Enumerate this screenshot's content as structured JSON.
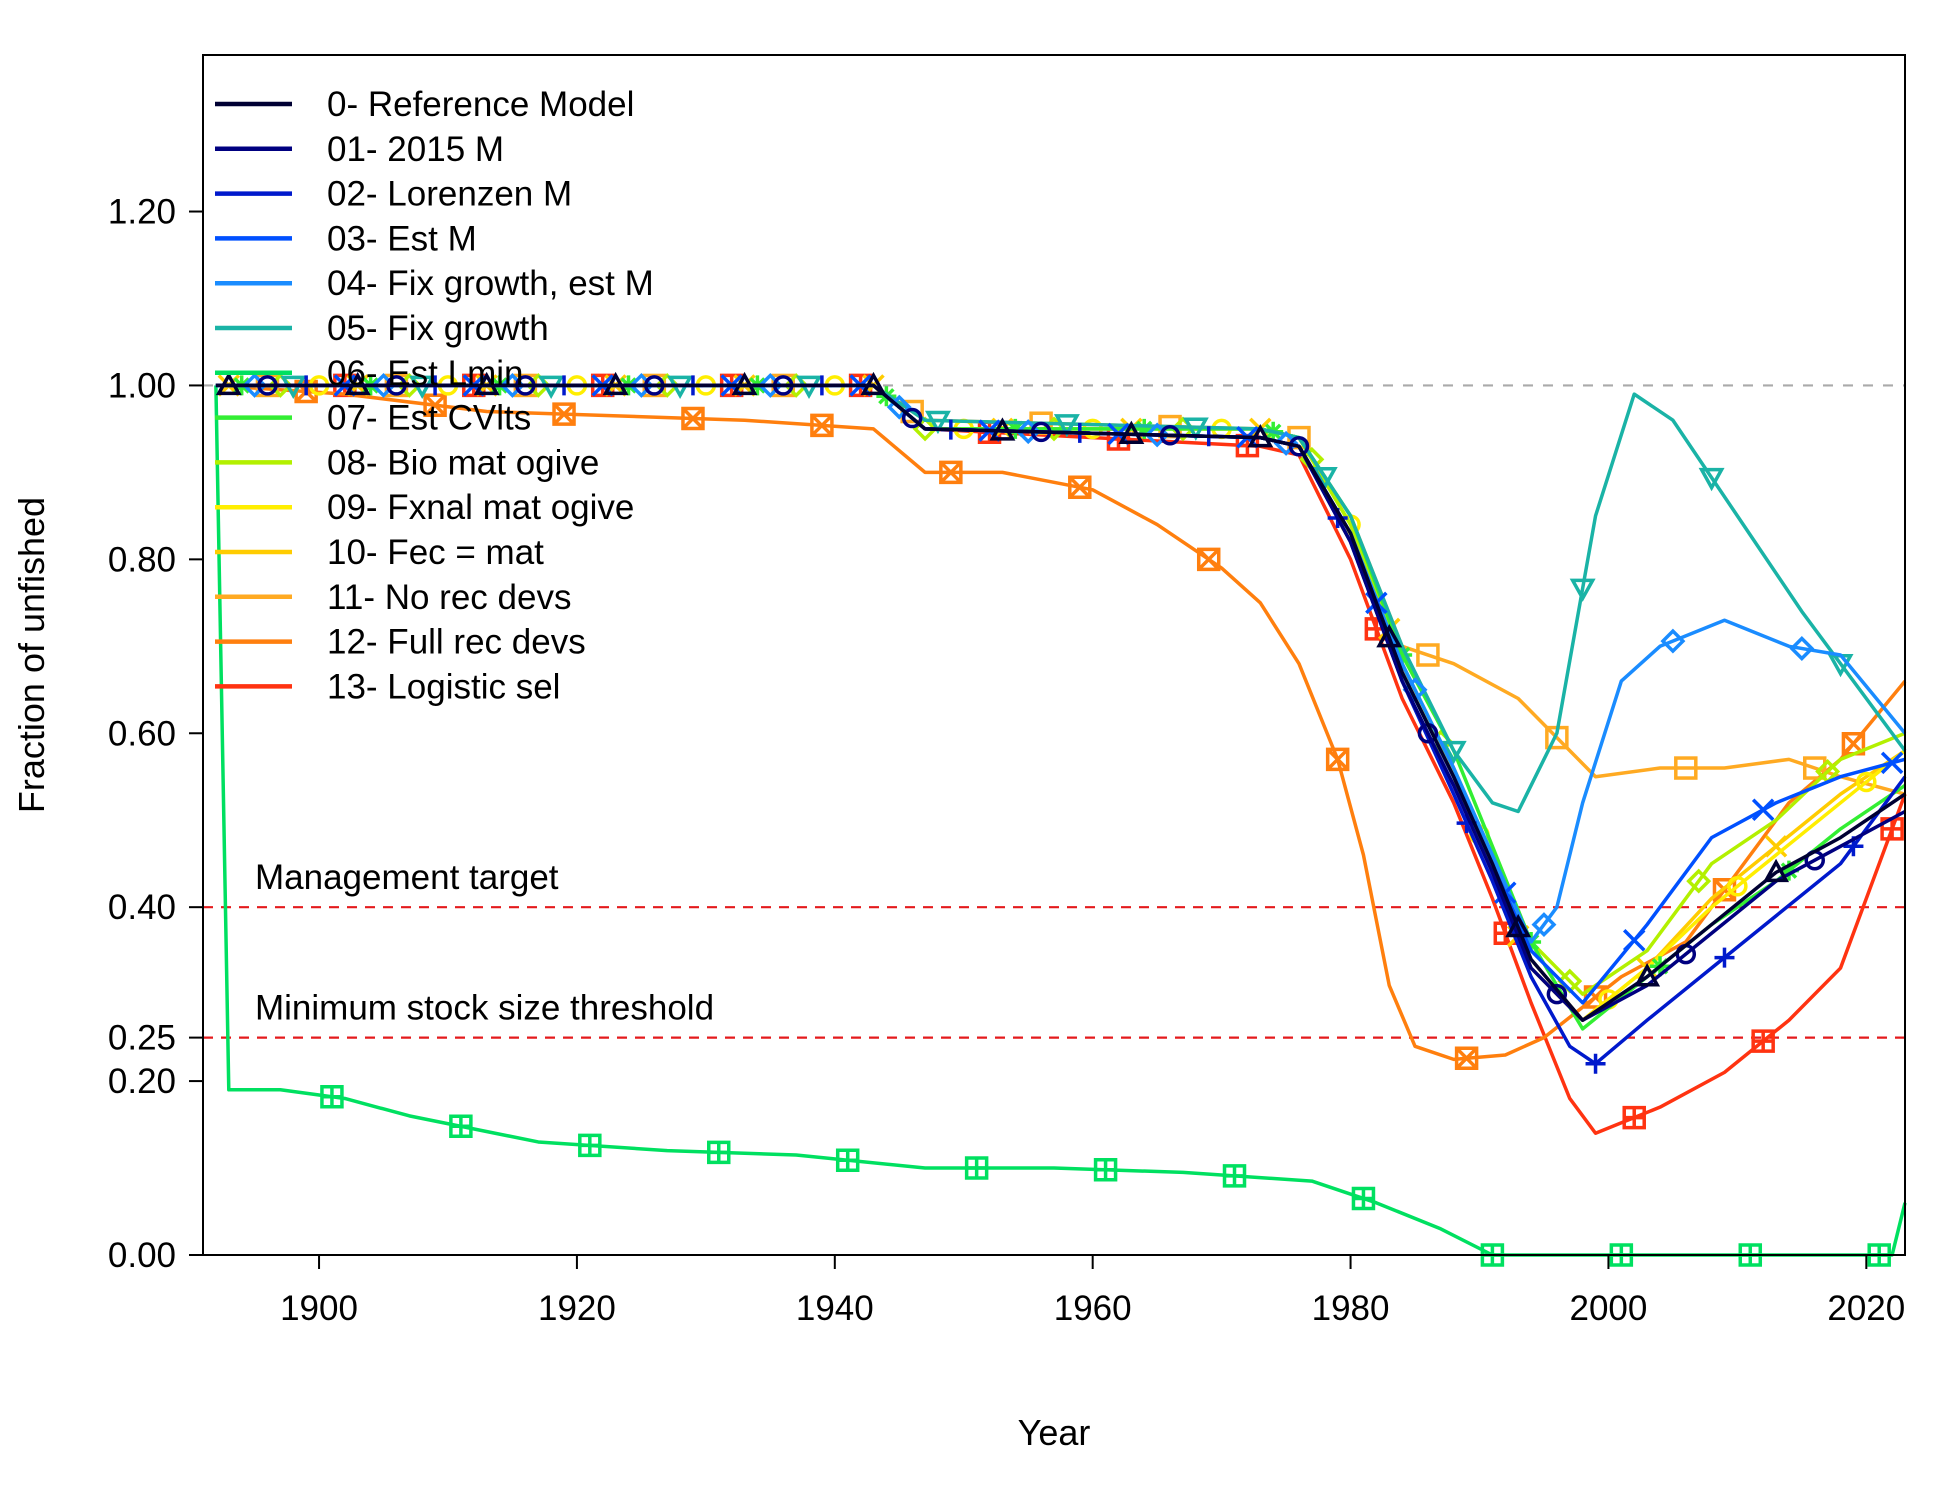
{
  "chart_data": {
    "type": "line",
    "title": "",
    "xlabel": "Year",
    "ylabel": "Fraction of unfished",
    "xlim": [
      1891,
      2023
    ],
    "ylim": [
      0,
      1.38
    ],
    "xticks": [
      1900,
      1920,
      1940,
      1960,
      1980,
      2000,
      2020
    ],
    "yticks": [
      0,
      0.2,
      0.25,
      0.4,
      0.6,
      0.8,
      1.0,
      1.2
    ],
    "ytick_labels": [
      "0.00",
      "0.20",
      "0.25",
      "0.40",
      "0.60",
      "0.80",
      "1.00",
      "1.20"
    ],
    "grid": false,
    "legend_position": "top-left",
    "reference_lines": [
      {
        "value": 1.0,
        "label": "",
        "color": "#aaaaaa"
      },
      {
        "value": 0.4,
        "label": "Management target",
        "color": "#e41a1c"
      },
      {
        "value": 0.25,
        "label": "Minimum stock size threshold",
        "color": "#e41a1c"
      }
    ],
    "series": [
      {
        "name": "0- Reference Model",
        "color": "#000033",
        "marker": "triangle",
        "points": [
          [
            1892,
            1.0
          ],
          [
            1943,
            1.0
          ],
          [
            1947,
            0.95
          ],
          [
            1973,
            0.94
          ],
          [
            1976,
            0.93
          ],
          [
            1980,
            0.83
          ],
          [
            1984,
            0.67
          ],
          [
            1988,
            0.55
          ],
          [
            1991,
            0.45
          ],
          [
            1994,
            0.34
          ],
          [
            1998,
            0.27
          ],
          [
            2003,
            0.32
          ],
          [
            2008,
            0.38
          ],
          [
            2013,
            0.44
          ],
          [
            2018,
            0.48
          ],
          [
            2023,
            0.53
          ]
        ]
      },
      {
        "name": "01- 2015 M",
        "color": "#000080",
        "marker": "circle",
        "points": [
          [
            1892,
            1.0
          ],
          [
            1943,
            1.0
          ],
          [
            1947,
            0.95
          ],
          [
            1973,
            0.94
          ],
          [
            1976,
            0.93
          ],
          [
            1980,
            0.82
          ],
          [
            1984,
            0.66
          ],
          [
            1988,
            0.54
          ],
          [
            1991,
            0.44
          ],
          [
            1994,
            0.33
          ],
          [
            1998,
            0.27
          ],
          [
            2003,
            0.31
          ],
          [
            2008,
            0.37
          ],
          [
            2013,
            0.43
          ],
          [
            2018,
            0.47
          ],
          [
            2023,
            0.51
          ]
        ]
      },
      {
        "name": "02- Lorenzen M",
        "color": "#0019cc",
        "marker": "plus",
        "points": [
          [
            1892,
            1.0
          ],
          [
            1943,
            1.0
          ],
          [
            1947,
            0.95
          ],
          [
            1973,
            0.94
          ],
          [
            1976,
            0.93
          ],
          [
            1980,
            0.82
          ],
          [
            1984,
            0.66
          ],
          [
            1988,
            0.53
          ],
          [
            1991,
            0.43
          ],
          [
            1994,
            0.32
          ],
          [
            1997,
            0.24
          ],
          [
            1999,
            0.22
          ],
          [
            2003,
            0.27
          ],
          [
            2008,
            0.33
          ],
          [
            2013,
            0.39
          ],
          [
            2018,
            0.45
          ],
          [
            2023,
            0.55
          ]
        ]
      },
      {
        "name": "03- Est M",
        "color": "#0050ff",
        "marker": "x",
        "points": [
          [
            1892,
            1.0
          ],
          [
            1943,
            1.0
          ],
          [
            1947,
            0.95
          ],
          [
            1973,
            0.94
          ],
          [
            1976,
            0.93
          ],
          [
            1980,
            0.83
          ],
          [
            1984,
            0.67
          ],
          [
            1988,
            0.55
          ],
          [
            1991,
            0.45
          ],
          [
            1994,
            0.35
          ],
          [
            1998,
            0.29
          ],
          [
            2003,
            0.38
          ],
          [
            2008,
            0.48
          ],
          [
            2013,
            0.52
          ],
          [
            2018,
            0.55
          ],
          [
            2023,
            0.57
          ]
        ]
      },
      {
        "name": "04- Fix growth, est M",
        "color": "#1a8cff",
        "marker": "diamond",
        "points": [
          [
            1892,
            1.0
          ],
          [
            1943,
            1.0
          ],
          [
            1947,
            0.95
          ],
          [
            1973,
            0.94
          ],
          [
            1976,
            0.93
          ],
          [
            1980,
            0.83
          ],
          [
            1984,
            0.68
          ],
          [
            1988,
            0.56
          ],
          [
            1991,
            0.46
          ],
          [
            1994,
            0.36
          ],
          [
            1996,
            0.4
          ],
          [
            1998,
            0.52
          ],
          [
            2001,
            0.66
          ],
          [
            2004,
            0.7
          ],
          [
            2009,
            0.73
          ],
          [
            2014,
            0.7
          ],
          [
            2018,
            0.69
          ],
          [
            2023,
            0.6
          ]
        ]
      },
      {
        "name": "05- Fix growth",
        "color": "#1ab3a6",
        "marker": "triangle-down",
        "points": [
          [
            1892,
            1.0
          ],
          [
            1943,
            1.0
          ],
          [
            1947,
            0.96
          ],
          [
            1973,
            0.95
          ],
          [
            1976,
            0.94
          ],
          [
            1980,
            0.85
          ],
          [
            1984,
            0.7
          ],
          [
            1988,
            0.58
          ],
          [
            1991,
            0.52
          ],
          [
            1993,
            0.51
          ],
          [
            1996,
            0.6
          ],
          [
            1999,
            0.85
          ],
          [
            2002,
            0.99
          ],
          [
            2005,
            0.96
          ],
          [
            2010,
            0.85
          ],
          [
            2015,
            0.74
          ],
          [
            2023,
            0.58
          ]
        ]
      },
      {
        "name": "06- Est Lmin",
        "color": "#00e060",
        "marker": "square-plus",
        "points": [
          [
            1892,
            1.0
          ],
          [
            1893,
            0.19
          ],
          [
            1897,
            0.19
          ],
          [
            1902,
            0.18
          ],
          [
            1907,
            0.16
          ],
          [
            1917,
            0.13
          ],
          [
            1927,
            0.12
          ],
          [
            1937,
            0.115
          ],
          [
            1947,
            0.1
          ],
          [
            1957,
            0.1
          ],
          [
            1967,
            0.095
          ],
          [
            1977,
            0.085
          ],
          [
            1982,
            0.06
          ],
          [
            1987,
            0.03
          ],
          [
            1991,
            0.0
          ],
          [
            2022,
            0.0
          ],
          [
            2023,
            0.06
          ]
        ]
      },
      {
        "name": "07- Est CVlts",
        "color": "#33ee33",
        "marker": "asterisk",
        "points": [
          [
            1892,
            1.0
          ],
          [
            1943,
            1.0
          ],
          [
            1947,
            0.95
          ],
          [
            1973,
            0.95
          ],
          [
            1976,
            0.94
          ],
          [
            1980,
            0.85
          ],
          [
            1984,
            0.69
          ],
          [
            1988,
            0.58
          ],
          [
            1991,
            0.47
          ],
          [
            1994,
            0.36
          ],
          [
            1998,
            0.26
          ],
          [
            2003,
            0.32
          ],
          [
            2008,
            0.38
          ],
          [
            2013,
            0.43
          ],
          [
            2018,
            0.49
          ],
          [
            2023,
            0.54
          ]
        ]
      },
      {
        "name": "08- Bio mat ogive",
        "color": "#b3f000",
        "marker": "diamond",
        "points": [
          [
            1892,
            1.0
          ],
          [
            1943,
            1.0
          ],
          [
            1947,
            0.95
          ],
          [
            1973,
            0.95
          ],
          [
            1976,
            0.94
          ],
          [
            1980,
            0.84
          ],
          [
            1984,
            0.68
          ],
          [
            1988,
            0.56
          ],
          [
            1991,
            0.46
          ],
          [
            1994,
            0.36
          ],
          [
            1998,
            0.3
          ],
          [
            2003,
            0.35
          ],
          [
            2008,
            0.45
          ],
          [
            2013,
            0.5
          ],
          [
            2018,
            0.57
          ],
          [
            2023,
            0.6
          ]
        ]
      },
      {
        "name": "09- Fxnal mat ogive",
        "color": "#ffee00",
        "marker": "circle",
        "points": [
          [
            1892,
            1.0
          ],
          [
            1943,
            1.0
          ],
          [
            1947,
            0.95
          ],
          [
            1973,
            0.95
          ],
          [
            1976,
            0.94
          ],
          [
            1980,
            0.84
          ],
          [
            1984,
            0.68
          ],
          [
            1988,
            0.55
          ],
          [
            1991,
            0.45
          ],
          [
            1994,
            0.34
          ],
          [
            1998,
            0.27
          ],
          [
            2003,
            0.33
          ],
          [
            2008,
            0.4
          ],
          [
            2013,
            0.46
          ],
          [
            2018,
            0.52
          ],
          [
            2023,
            0.58
          ]
        ]
      },
      {
        "name": "10- Fec = mat",
        "color": "#ffcc00",
        "marker": "x",
        "points": [
          [
            1892,
            1.0
          ],
          [
            1943,
            1.0
          ],
          [
            1947,
            0.95
          ],
          [
            1973,
            0.95
          ],
          [
            1976,
            0.94
          ],
          [
            1980,
            0.84
          ],
          [
            1984,
            0.68
          ],
          [
            1988,
            0.55
          ],
          [
            1991,
            0.44
          ],
          [
            1994,
            0.33
          ],
          [
            1998,
            0.27
          ],
          [
            2003,
            0.33
          ],
          [
            2008,
            0.41
          ],
          [
            2013,
            0.47
          ],
          [
            2018,
            0.53
          ],
          [
            2023,
            0.58
          ]
        ]
      },
      {
        "name": "11- No rec devs",
        "color": "#ffaa22",
        "marker": "square",
        "points": [
          [
            1892,
            1.0
          ],
          [
            1943,
            1.0
          ],
          [
            1947,
            0.96
          ],
          [
            1973,
            0.95
          ],
          [
            1976,
            0.94
          ],
          [
            1980,
            0.85
          ],
          [
            1984,
            0.7
          ],
          [
            1988,
            0.68
          ],
          [
            1993,
            0.64
          ],
          [
            1999,
            0.55
          ],
          [
            2004,
            0.56
          ],
          [
            2009,
            0.56
          ],
          [
            2014,
            0.57
          ],
          [
            2018,
            0.55
          ],
          [
            2023,
            0.53
          ]
        ]
      },
      {
        "name": "12- Full rec devs",
        "color": "#ff7f0e",
        "marker": "square-x",
        "points": [
          [
            1892,
            1.0
          ],
          [
            1902,
            0.99
          ],
          [
            1913,
            0.97
          ],
          [
            1933,
            0.96
          ],
          [
            1943,
            0.95
          ],
          [
            1947,
            0.9
          ],
          [
            1953,
            0.9
          ],
          [
            1960,
            0.88
          ],
          [
            1965,
            0.84
          ],
          [
            1970,
            0.79
          ],
          [
            1973,
            0.75
          ],
          [
            1976,
            0.68
          ],
          [
            1979,
            0.57
          ],
          [
            1981,
            0.46
          ],
          [
            1983,
            0.31
          ],
          [
            1985,
            0.24
          ],
          [
            1988,
            0.225
          ],
          [
            1992,
            0.23
          ],
          [
            1995,
            0.25
          ],
          [
            2001,
            0.32
          ],
          [
            2006,
            0.36
          ],
          [
            2010,
            0.44
          ],
          [
            2014,
            0.52
          ],
          [
            2018,
            0.57
          ],
          [
            2023,
            0.66
          ]
        ]
      },
      {
        "name": "13- Logistic sel",
        "color": "#ff3311",
        "marker": "square-plus",
        "points": [
          [
            1892,
            1.0
          ],
          [
            1943,
            1.0
          ],
          [
            1947,
            0.95
          ],
          [
            1973,
            0.93
          ],
          [
            1976,
            0.92
          ],
          [
            1980,
            0.8
          ],
          [
            1984,
            0.64
          ],
          [
            1988,
            0.52
          ],
          [
            1991,
            0.41
          ],
          [
            1994,
            0.29
          ],
          [
            1997,
            0.18
          ],
          [
            1999,
            0.14
          ],
          [
            2004,
            0.17
          ],
          [
            2009,
            0.21
          ],
          [
            2014,
            0.27
          ],
          [
            2018,
            0.33
          ],
          [
            2023,
            0.53
          ]
        ]
      }
    ]
  }
}
